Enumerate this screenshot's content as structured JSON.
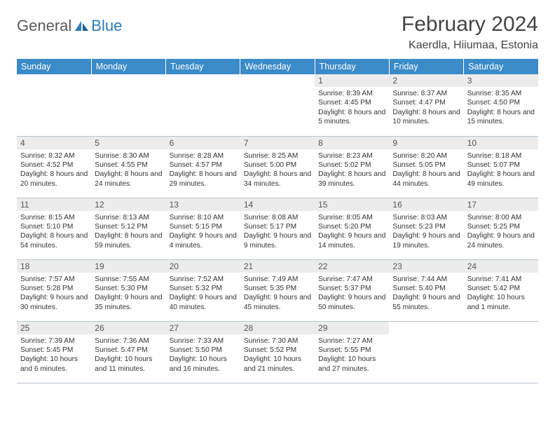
{
  "brand": {
    "part1": "General",
    "part2": "Blue"
  },
  "title": "February 2024",
  "location": "Kaerdla, Hiiumaa, Estonia",
  "colors": {
    "header_bg": "#3b8bc8",
    "header_text": "#ffffff",
    "daynum_bg": "#ececec",
    "border": "#b8c4d0",
    "title_color": "#444444",
    "body_text": "#333333",
    "logo_gray": "#595959",
    "logo_blue": "#2b7bba"
  },
  "weekdays": [
    "Sunday",
    "Monday",
    "Tuesday",
    "Wednesday",
    "Thursday",
    "Friday",
    "Saturday"
  ],
  "weeks": [
    [
      null,
      null,
      null,
      null,
      {
        "n": "1",
        "sr": "8:39 AM",
        "ss": "4:45 PM",
        "dl": "8 hours and 5 minutes."
      },
      {
        "n": "2",
        "sr": "8:37 AM",
        "ss": "4:47 PM",
        "dl": "8 hours and 10 minutes."
      },
      {
        "n": "3",
        "sr": "8:35 AM",
        "ss": "4:50 PM",
        "dl": "8 hours and 15 minutes."
      }
    ],
    [
      {
        "n": "4",
        "sr": "8:32 AM",
        "ss": "4:52 PM",
        "dl": "8 hours and 20 minutes."
      },
      {
        "n": "5",
        "sr": "8:30 AM",
        "ss": "4:55 PM",
        "dl": "8 hours and 24 minutes."
      },
      {
        "n": "6",
        "sr": "8:28 AM",
        "ss": "4:57 PM",
        "dl": "8 hours and 29 minutes."
      },
      {
        "n": "7",
        "sr": "8:25 AM",
        "ss": "5:00 PM",
        "dl": "8 hours and 34 minutes."
      },
      {
        "n": "8",
        "sr": "8:23 AM",
        "ss": "5:02 PM",
        "dl": "8 hours and 39 minutes."
      },
      {
        "n": "9",
        "sr": "8:20 AM",
        "ss": "5:05 PM",
        "dl": "8 hours and 44 minutes."
      },
      {
        "n": "10",
        "sr": "8:18 AM",
        "ss": "5:07 PM",
        "dl": "8 hours and 49 minutes."
      }
    ],
    [
      {
        "n": "11",
        "sr": "8:15 AM",
        "ss": "5:10 PM",
        "dl": "8 hours and 54 minutes."
      },
      {
        "n": "12",
        "sr": "8:13 AM",
        "ss": "5:12 PM",
        "dl": "8 hours and 59 minutes."
      },
      {
        "n": "13",
        "sr": "8:10 AM",
        "ss": "5:15 PM",
        "dl": "9 hours and 4 minutes."
      },
      {
        "n": "14",
        "sr": "8:08 AM",
        "ss": "5:17 PM",
        "dl": "9 hours and 9 minutes."
      },
      {
        "n": "15",
        "sr": "8:05 AM",
        "ss": "5:20 PM",
        "dl": "9 hours and 14 minutes."
      },
      {
        "n": "16",
        "sr": "8:03 AM",
        "ss": "5:23 PM",
        "dl": "9 hours and 19 minutes."
      },
      {
        "n": "17",
        "sr": "8:00 AM",
        "ss": "5:25 PM",
        "dl": "9 hours and 24 minutes."
      }
    ],
    [
      {
        "n": "18",
        "sr": "7:57 AM",
        "ss": "5:28 PM",
        "dl": "9 hours and 30 minutes."
      },
      {
        "n": "19",
        "sr": "7:55 AM",
        "ss": "5:30 PM",
        "dl": "9 hours and 35 minutes."
      },
      {
        "n": "20",
        "sr": "7:52 AM",
        "ss": "5:32 PM",
        "dl": "9 hours and 40 minutes."
      },
      {
        "n": "21",
        "sr": "7:49 AM",
        "ss": "5:35 PM",
        "dl": "9 hours and 45 minutes."
      },
      {
        "n": "22",
        "sr": "7:47 AM",
        "ss": "5:37 PM",
        "dl": "9 hours and 50 minutes."
      },
      {
        "n": "23",
        "sr": "7:44 AM",
        "ss": "5:40 PM",
        "dl": "9 hours and 55 minutes."
      },
      {
        "n": "24",
        "sr": "7:41 AM",
        "ss": "5:42 PM",
        "dl": "10 hours and 1 minute."
      }
    ],
    [
      {
        "n": "25",
        "sr": "7:39 AM",
        "ss": "5:45 PM",
        "dl": "10 hours and 6 minutes."
      },
      {
        "n": "26",
        "sr": "7:36 AM",
        "ss": "5:47 PM",
        "dl": "10 hours and 11 minutes."
      },
      {
        "n": "27",
        "sr": "7:33 AM",
        "ss": "5:50 PM",
        "dl": "10 hours and 16 minutes."
      },
      {
        "n": "28",
        "sr": "7:30 AM",
        "ss": "5:52 PM",
        "dl": "10 hours and 21 minutes."
      },
      {
        "n": "29",
        "sr": "7:27 AM",
        "ss": "5:55 PM",
        "dl": "10 hours and 27 minutes."
      },
      null,
      null
    ]
  ],
  "labels": {
    "sunrise": "Sunrise: ",
    "sunset": "Sunset: ",
    "daylight": "Daylight: "
  }
}
